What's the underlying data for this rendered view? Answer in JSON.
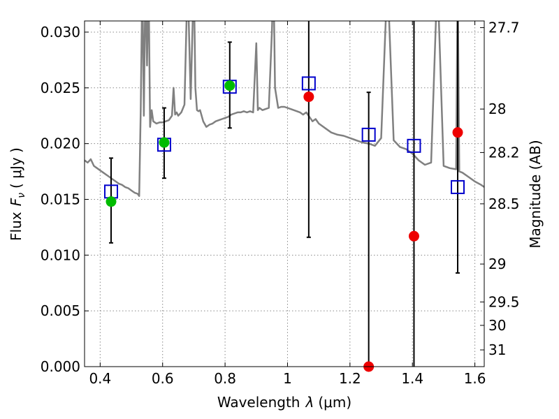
{
  "chart_data": {
    "type": "scatter",
    "xlabel": "Wavelength",
    "xlabel_symbol": "λ",
    "xlabel_unit": "(μm)",
    "ylabel": "Flux",
    "ylabel_symbol": "F",
    "ylabel_subscript": "ν",
    "ylabel_unit": "( μJy )",
    "y2label": "Magnitude (AB)",
    "xlim": [
      0.35,
      1.63
    ],
    "ylim": [
      0.0,
      0.031
    ],
    "grid": true,
    "x_ticks": [
      0.4,
      0.6,
      0.8,
      1.0,
      1.2,
      1.4,
      1.6
    ],
    "x_tick_labels": [
      "0.4",
      "0.6",
      "0.8",
      "1",
      "1.2",
      "1.4",
      "1.6"
    ],
    "y_ticks": [
      0.0,
      0.005,
      0.01,
      0.015,
      0.02,
      0.025,
      0.03
    ],
    "y_tick_labels": [
      "0.000",
      "0.005",
      "0.010",
      "0.015",
      "0.020",
      "0.025",
      "0.030"
    ],
    "y2_ticks": [
      {
        "label": "27.7",
        "flux": 0.0304
      },
      {
        "label": "28",
        "flux": 0.0231
      },
      {
        "label": "28.2",
        "flux": 0.0192
      },
      {
        "label": "28.5",
        "flux": 0.0146
      },
      {
        "label": "29",
        "flux": 0.0092
      },
      {
        "label": "29.5",
        "flux": 0.0058
      },
      {
        "label": "30",
        "flux": 0.0037
      },
      {
        "label": "31",
        "flux": 0.0015
      }
    ],
    "colors": {
      "sed_line": "#808080",
      "model_marker": "#0000cc",
      "detected": "#00bb00",
      "undetected": "#ee0000",
      "errorbar": "#000000",
      "grid": "#888888"
    },
    "sed_spectrum": {
      "x": [
        0.35,
        0.36,
        0.37,
        0.38,
        0.39,
        0.4,
        0.41,
        0.42,
        0.43,
        0.44,
        0.45,
        0.46,
        0.47,
        0.48,
        0.49,
        0.5,
        0.51,
        0.52,
        0.525,
        0.53,
        0.535,
        0.54,
        0.545,
        0.55,
        0.555,
        0.56,
        0.565,
        0.57,
        0.58,
        0.59,
        0.6,
        0.61,
        0.62,
        0.63,
        0.635,
        0.64,
        0.645,
        0.65,
        0.66,
        0.67,
        0.68,
        0.69,
        0.7,
        0.705,
        0.71,
        0.715,
        0.72,
        0.73,
        0.74,
        0.75,
        0.76,
        0.77,
        0.78,
        0.79,
        0.8,
        0.81,
        0.82,
        0.83,
        0.84,
        0.85,
        0.86,
        0.87,
        0.88,
        0.89,
        0.9,
        0.905,
        0.91,
        0.92,
        0.93,
        0.94,
        0.95,
        0.955,
        0.96,
        0.97,
        0.98,
        0.99,
        1.0,
        1.01,
        1.02,
        1.03,
        1.04,
        1.05,
        1.06,
        1.07,
        1.08,
        1.09,
        1.1,
        1.12,
        1.14,
        1.16,
        1.18,
        1.2,
        1.22,
        1.24,
        1.26,
        1.28,
        1.3,
        1.32,
        1.34,
        1.36,
        1.38,
        1.4,
        1.42,
        1.44,
        1.46,
        1.48,
        1.5,
        1.52,
        1.54,
        1.545,
        1.55,
        1.56,
        1.58,
        1.6,
        1.62,
        1.63
      ],
      "y": [
        0.0185,
        0.0183,
        0.0186,
        0.018,
        0.0178,
        0.0176,
        0.0174,
        0.0172,
        0.017,
        0.0168,
        0.0166,
        0.0164,
        0.0163,
        0.0161,
        0.016,
        0.0158,
        0.0156,
        0.0155,
        0.0153,
        0.023,
        0.035,
        0.0225,
        0.035,
        0.027,
        0.035,
        0.0215,
        0.023,
        0.022,
        0.0218,
        0.0219,
        0.0219,
        0.022,
        0.0221,
        0.0225,
        0.025,
        0.0226,
        0.0228,
        0.0225,
        0.0228,
        0.0235,
        0.035,
        0.024,
        0.035,
        0.025,
        0.023,
        0.0229,
        0.023,
        0.022,
        0.0215,
        0.0217,
        0.0218,
        0.022,
        0.0221,
        0.0222,
        0.0223,
        0.0224,
        0.0226,
        0.0227,
        0.0228,
        0.0228,
        0.0229,
        0.0228,
        0.0229,
        0.0228,
        0.029,
        0.023,
        0.0232,
        0.023,
        0.0231,
        0.0232,
        0.03,
        0.035,
        0.025,
        0.0232,
        0.0233,
        0.0233,
        0.0232,
        0.0231,
        0.023,
        0.0229,
        0.0228,
        0.0226,
        0.0228,
        0.0224,
        0.022,
        0.0222,
        0.0218,
        0.0214,
        0.021,
        0.0208,
        0.0207,
        0.0205,
        0.0203,
        0.0201,
        0.02,
        0.0198,
        0.0205,
        0.035,
        0.0203,
        0.0197,
        0.0195,
        0.0191,
        0.0185,
        0.0181,
        0.0183,
        0.035,
        0.018,
        0.0178,
        0.0177,
        0.035,
        0.0175,
        0.0174,
        0.017,
        0.0166,
        0.0163,
        0.0161
      ]
    },
    "model_points": {
      "x": [
        0.435,
        0.605,
        0.815,
        1.068,
        1.26,
        1.405,
        1.545
      ],
      "y": [
        0.0157,
        0.0199,
        0.0251,
        0.0254,
        0.0208,
        0.0198,
        0.0161
      ]
    },
    "detected_points": {
      "x": [
        0.435,
        0.605,
        0.815
      ],
      "y": [
        0.0148,
        0.0201,
        0.0252
      ]
    },
    "undetected_points": {
      "x": [
        1.068,
        1.26,
        1.405,
        1.545
      ],
      "y": [
        0.0242,
        0.0,
        0.0117,
        0.021
      ]
    },
    "error_bars": [
      {
        "x": 0.435,
        "low": 0.0111,
        "high": 0.0187
      },
      {
        "x": 0.605,
        "low": 0.0169,
        "high": 0.0232
      },
      {
        "x": 0.815,
        "low": 0.0214,
        "high": 0.0291
      },
      {
        "x": 1.068,
        "low": 0.0116,
        "high": 0.034
      },
      {
        "x": 1.26,
        "low": 0.0,
        "high": 0.0246
      },
      {
        "x": 1.405,
        "low": 0.0,
        "high": 0.0315
      },
      {
        "x": 1.545,
        "low": 0.0084,
        "high": 0.034
      }
    ]
  }
}
